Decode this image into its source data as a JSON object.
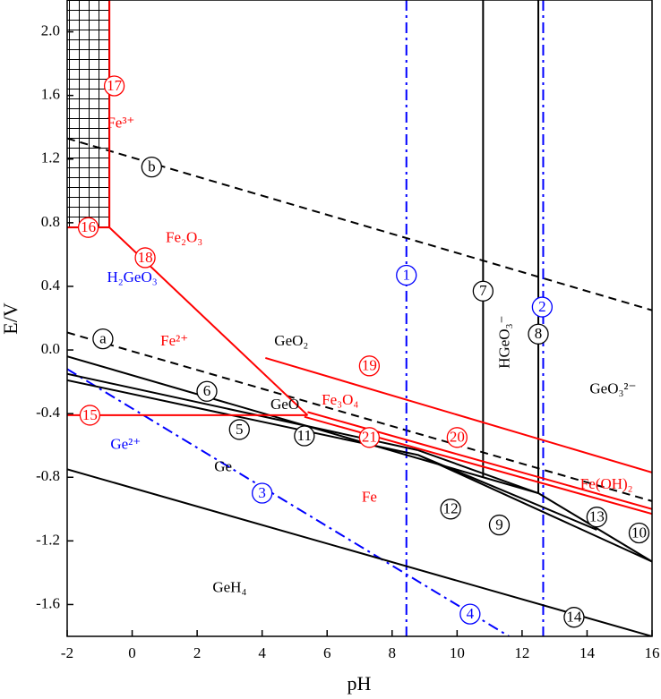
{
  "chart_data": {
    "type": "line",
    "xlabel": "pH",
    "ylabel": "E/V",
    "xlim": [
      -2,
      16
    ],
    "ylim": [
      -1.8,
      2.2
    ],
    "xticks": [
      -2,
      0,
      2,
      4,
      6,
      8,
      10,
      12,
      14,
      16
    ],
    "yticks": [
      {
        "value": 2.0,
        "label": "2.0"
      },
      1.6,
      1.2,
      0.8,
      0.4,
      {
        "value": 0.0,
        "label": "0.0"
      },
      -0.4,
      -0.8,
      -1.2,
      -1.6
    ],
    "series": [
      {
        "color": "#000000",
        "style": "dash",
        "x": [
          -2,
          16
        ],
        "values": [
          0.11,
          -0.95
        ]
      },
      {
        "color": "#000000",
        "style": "dash",
        "x": [
          -2,
          16
        ],
        "values": [
          1.33,
          0.25
        ]
      },
      {
        "color": "#0000ff",
        "style": "dashdot",
        "x": [
          8.44,
          8.44
        ],
        "values": [
          2.2,
          -1.8
        ]
      },
      {
        "color": "#0000ff",
        "style": "dashdot",
        "x": [
          12.65,
          12.65
        ],
        "values": [
          2.2,
          -1.8
        ]
      },
      {
        "color": "#0000ff",
        "style": "dashdot",
        "x": [
          -2,
          11.6
        ],
        "values": [
          -0.12,
          -1.8
        ]
      },
      {
        "color": "#000000",
        "style": "solid",
        "x": [
          10.8,
          10.8
        ],
        "values": [
          2.2,
          -0.8
        ]
      },
      {
        "color": "#000000",
        "style": "solid",
        "x": [
          12.5,
          12.5
        ],
        "values": [
          2.2,
          -0.9
        ]
      },
      {
        "color": "#000000",
        "style": "solid",
        "x": [
          -2,
          10.8,
          12.5
        ],
        "values": [
          -0.04,
          -0.8,
          -0.9
        ]
      },
      {
        "color": "#000000",
        "style": "solid",
        "x": [
          12.5,
          16
        ],
        "values": [
          -0.9,
          -1.33
        ]
      },
      {
        "color": "#000000",
        "style": "solid",
        "x": [
          -2,
          8.8,
          16
        ],
        "values": [
          -0.19,
          -0.66,
          -1.33
        ]
      },
      {
        "color": "#000000",
        "style": "solid",
        "x": [
          -2,
          8.8
        ],
        "values": [
          -0.15,
          -0.63
        ]
      },
      {
        "color": "#000000",
        "style": "solid",
        "x": [
          8.8,
          12.5
        ],
        "values": [
          -0.63,
          -0.9
        ]
      },
      {
        "color": "#000000",
        "style": "solid",
        "x": [
          8.8,
          14.3
        ],
        "values": [
          -0.66,
          -1.13
        ]
      },
      {
        "color": "#000000",
        "style": "solid",
        "x": [
          -2,
          16
        ],
        "values": [
          -0.75,
          -1.8
        ]
      },
      {
        "color": "#ff0000",
        "style": "solid",
        "x": [
          -2,
          5.4
        ],
        "values": [
          -0.41,
          -0.41
        ]
      },
      {
        "color": "#ff0000",
        "style": "solid",
        "x": [
          -2,
          -0.7
        ],
        "values": [
          0.77,
          0.77
        ]
      },
      {
        "color": "#ff0000",
        "style": "solid",
        "x": [
          -0.7,
          -0.7
        ],
        "values": [
          2.2,
          0.77
        ]
      },
      {
        "color": "#ff0000",
        "style": "solid",
        "x": [
          -0.7,
          5.4
        ],
        "values": [
          0.77,
          -0.41
        ]
      },
      {
        "color": "#ff0000",
        "style": "solid",
        "x": [
          4.1,
          16
        ],
        "values": [
          -0.05,
          -0.77
        ]
      },
      {
        "color": "#ff0000",
        "style": "solid",
        "x": [
          5.4,
          16
        ],
        "values": [
          -0.39,
          -1.0
        ]
      },
      {
        "color": "#ff0000",
        "style": "solid",
        "x": [
          5.3,
          16
        ],
        "values": [
          -0.42,
          -1.03
        ]
      }
    ],
    "markers": [
      {
        "text": "17",
        "color": "#ff0000"
      },
      {
        "text": "16",
        "color": "#ff0000"
      },
      {
        "text": "18",
        "color": "#ff0000"
      },
      {
        "text": "1",
        "color": "#0000ff"
      },
      {
        "text": "7",
        "color": "#000000"
      },
      {
        "text": "2",
        "color": "#0000ff"
      },
      {
        "text": "8",
        "color": "#000000"
      },
      {
        "text": "a",
        "color": "#000000"
      },
      {
        "text": "b",
        "color": "#000000"
      },
      {
        "text": "19",
        "color": "#ff0000"
      },
      {
        "text": "6",
        "color": "#000000"
      },
      {
        "text": "5",
        "color": "#000000"
      },
      {
        "text": "11",
        "color": "#000000"
      },
      {
        "text": "21",
        "color": "#ff0000"
      },
      {
        "text": "20",
        "color": "#ff0000"
      },
      {
        "text": "15",
        "color": "#ff0000"
      },
      {
        "text": "3",
        "color": "#0000ff"
      },
      {
        "text": "12",
        "color": "#000000"
      },
      {
        "text": "9",
        "color": "#000000"
      },
      {
        "text": "13",
        "color": "#000000"
      },
      {
        "text": "10",
        "color": "#000000"
      },
      {
        "text": "4",
        "color": "#0000ff"
      },
      {
        "text": "14",
        "color": "#000000"
      }
    ],
    "regions": [
      {
        "text": "Fe³⁺",
        "color": "#ff0000"
      },
      {
        "text": "Fe₂O₃",
        "color": "#ff0000"
      },
      {
        "text": "H₂GeO₃",
        "color": "#0000ff"
      },
      {
        "text": "Fe²⁺",
        "color": "#ff0000"
      },
      {
        "text": "GeO₂",
        "color": "#000000"
      },
      {
        "text": "HGeO₃⁻",
        "color": "#000000"
      },
      {
        "text": "GeO₃²⁻",
        "color": "#000000"
      },
      {
        "text": "Fe₃O₄",
        "color": "#ff0000"
      },
      {
        "text": "GeO",
        "color": "#000000"
      },
      {
        "text": "Ge²⁺",
        "color": "#0000ff"
      },
      {
        "text": "Ge",
        "color": "#000000"
      },
      {
        "text": "Fe",
        "color": "#ff0000"
      },
      {
        "text": "Fe(OH)₂",
        "color": "#ff0000"
      },
      {
        "text": "GeH₄",
        "color": "#000000"
      }
    ]
  }
}
